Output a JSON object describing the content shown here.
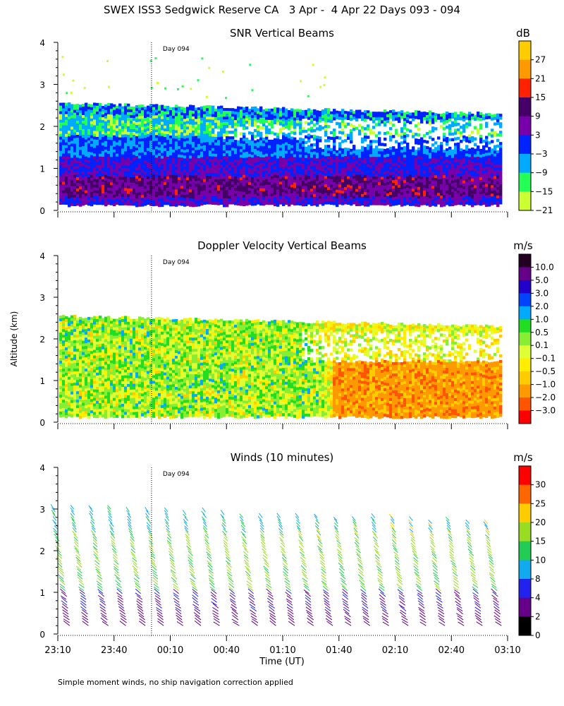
{
  "page_title": "SWEX ISS3 Sedgwick Reserve CA   3 Apr -  4 Apr 22 Days 093 - 094",
  "footnote": "Simple moment winds, no ship navigation correction applied",
  "shared_axes": {
    "ylabel": "Altitude (km)",
    "xlabel": "Time (UT)",
    "x_range_minutes_after_23_10": [
      0,
      240
    ],
    "x_ticks": [
      "23:10",
      "23:40",
      "00:10",
      "00:40",
      "01:10",
      "01:40",
      "02:10",
      "02:40",
      "03:10"
    ],
    "y_range_km": [
      0,
      4
    ],
    "y_ticks": [
      "0",
      "1",
      "2",
      "3",
      "4"
    ],
    "day_marker_label": "Day 094",
    "day_marker_minute": 50
  },
  "chart_data": [
    {
      "type": "heatmap",
      "title": "SNR Vertical Beams",
      "units": "dB",
      "colorbar_labels": [
        "27",
        "21",
        "15",
        "9",
        "3",
        "−3",
        "−9",
        "−15",
        "−21"
      ],
      "colorbar_colors": [
        "#ffcc00",
        "#ff9900",
        "#ff2200",
        "#440066",
        "#7700aa",
        "#0022ff",
        "#00aaff",
        "#22ff55",
        "#ccff33"
      ]
    },
    {
      "type": "heatmap",
      "title": "Doppler Velocity Vertical Beams",
      "units": "m/s",
      "colorbar_labels": [
        "10.0",
        "5.0",
        "3.0",
        "2.0",
        "1.0",
        "0.5",
        "0.1",
        "−0.1",
        "−0.5",
        "−1.0",
        "−2.0",
        "−3.0"
      ],
      "colorbar_colors": [
        "#220022",
        "#660088",
        "#2200cc",
        "#0044ff",
        "#00aaff",
        "#22dd22",
        "#88ee33",
        "#ddff33",
        "#ffee00",
        "#ffcc00",
        "#ff9900",
        "#ff5500",
        "#ff0000"
      ]
    },
    {
      "type": "wind_barbs",
      "title": "Winds (10 minutes)",
      "units": "m/s",
      "colorbar_labels": [
        "30",
        "25",
        "20",
        "15",
        "10",
        "8",
        "4",
        "2",
        "0"
      ],
      "colorbar_colors": [
        "#ff0000",
        "#ff6600",
        "#ffcc00",
        "#99dd22",
        "#22cc55",
        "#11aaee",
        "#2222ee",
        "#660088",
        "#000000"
      ]
    }
  ]
}
